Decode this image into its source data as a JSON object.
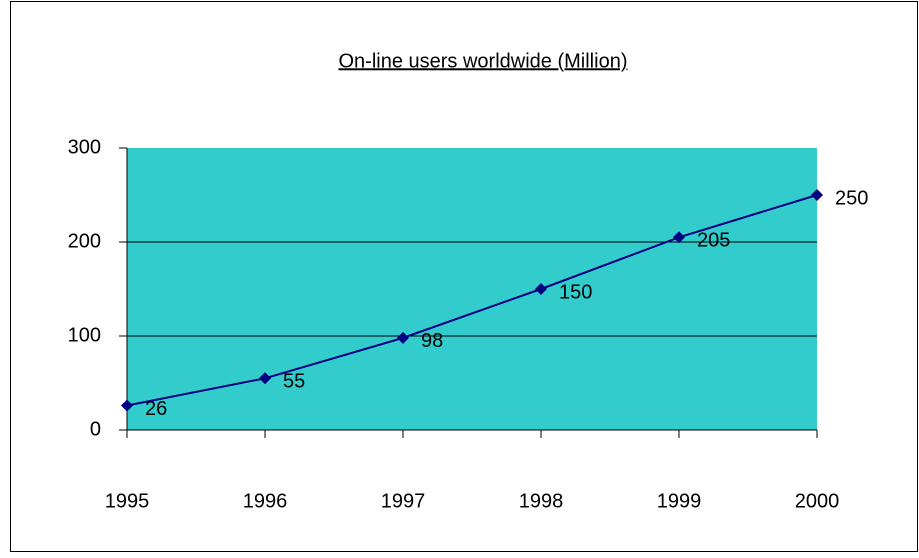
{
  "chart_data": {
    "type": "line",
    "title": "On-line users worldwide (Million)",
    "x": [
      1995,
      1996,
      1997,
      1998,
      1999,
      2000
    ],
    "series": [
      {
        "color": "#000080",
        "values": [
          26,
          55,
          98,
          150,
          205,
          250
        ]
      }
    ],
    "xlim": [
      1995,
      2000
    ],
    "xticks": [
      1995,
      1996,
      1997,
      1998,
      1999,
      2000
    ],
    "ylim": [
      0,
      300
    ],
    "yticks": [
      0,
      100,
      200,
      300
    ],
    "grid": true,
    "plot_background": "#33cccc"
  }
}
